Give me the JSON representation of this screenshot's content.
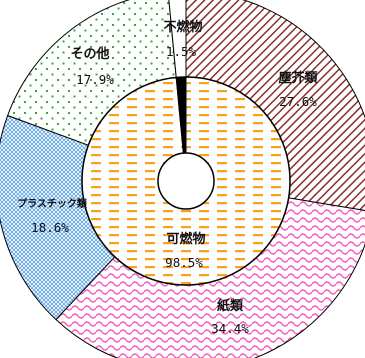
{
  "chart_data": {
    "type": "pie",
    "title": "",
    "inner_ring": [
      {
        "label": "可燃物",
        "value": 98.5,
        "value_label": "98.5%",
        "color": "#f7a21b",
        "pattern": "dashes"
      },
      {
        "label": "不燃物",
        "value": 1.5,
        "value_label": "1.5%",
        "color": "#000000",
        "pattern": "solid"
      }
    ],
    "outer_ring": [
      {
        "label": "塵芥類",
        "value": 27.6,
        "value_label": "27.6%",
        "color": "#8b2e2e",
        "pattern": "diagonal-hatch"
      },
      {
        "label": "紙類",
        "value": 34.4,
        "value_label": "34.4%",
        "color": "#f25bbd",
        "pattern": "wave"
      },
      {
        "label": "プラスチック類",
        "value": 18.6,
        "value_label": "18.6%",
        "color": "#5aa0e6",
        "pattern": "crosshatch"
      },
      {
        "label": "その他",
        "value": 17.9,
        "value_label": "17.9%",
        "color": "#3aa83a",
        "pattern": "dots"
      },
      {
        "label": "不燃物",
        "value": 1.5,
        "value_label": "1.5%",
        "color": "#ffffff",
        "pattern": "none"
      }
    ]
  }
}
